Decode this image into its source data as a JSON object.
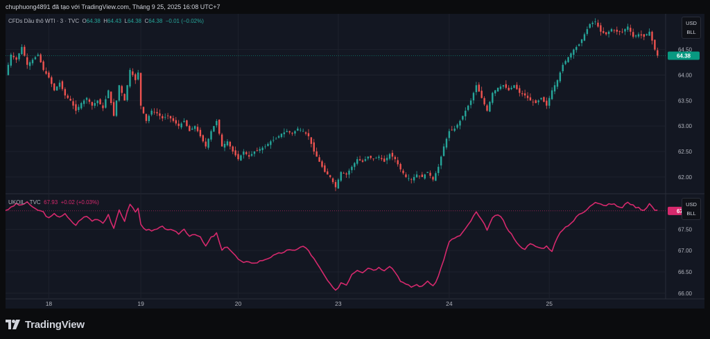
{
  "header": {
    "caption": "chuphuong4891 đã tạo với TradingView.com, Tháng 9 25, 2025 16:08 UTC+7"
  },
  "top_legend": {
    "symbol": "CFDs Dầu thô WTI · 3 · TVC",
    "o_label": "O",
    "o_value": "64.38",
    "h_label": "H",
    "h_value": "64.43",
    "l_label": "L",
    "l_value": "64.38",
    "c_label": "C",
    "c_value": "64.38",
    "change": "−0.01 (−0.02%)"
  },
  "bottom_legend": {
    "symbol": "UKOIL · TVC",
    "value": "67.93",
    "change": "+0.02 (+0.03%)"
  },
  "unit_buttons": {
    "currency": "USD",
    "unit": "BLL"
  },
  "footer": {
    "brand": "TradingView"
  },
  "colors": {
    "up": "#26a69a",
    "down": "#ef5350",
    "brent_line": "#d6296d",
    "price_tag_top": "#089981",
    "price_tag_bottom": "#d6296d",
    "grid": "#1e222d",
    "axis_text": "#b2b5be"
  },
  "chart_data": [
    {
      "type": "candlestick",
      "title": "CFDs Dầu thô WTI · 3 · TVC",
      "x_ticks": [
        "18",
        "19",
        "20",
        "23",
        "24",
        "25"
      ],
      "y_ticks": [
        62.0,
        62.5,
        63.0,
        63.5,
        64.0,
        64.5
      ],
      "ylim": [
        61.7,
        65.2
      ],
      "last_price": "64.38",
      "grid": true,
      "series": [
        {
          "name": "WTI",
          "close_path": [
            [
              0,
              64.0
            ],
            [
              2,
              64.4
            ],
            [
              4,
              64.3
            ],
            [
              6,
              64.55
            ],
            [
              8,
              64.2
            ],
            [
              10,
              64.3
            ],
            [
              12,
              64.4
            ],
            [
              14,
              64.1
            ],
            [
              16,
              63.95
            ],
            [
              18,
              63.7
            ],
            [
              20,
              63.85
            ],
            [
              22,
              63.6
            ],
            [
              24,
              63.5
            ],
            [
              26,
              63.3
            ],
            [
              28,
              63.45
            ],
            [
              30,
              63.55
            ],
            [
              32,
              63.4
            ],
            [
              34,
              63.5
            ],
            [
              36,
              63.35
            ],
            [
              38,
              63.7
            ],
            [
              40,
              63.2
            ],
            [
              42,
              63.8
            ],
            [
              44,
              63.5
            ],
            [
              46,
              64.1
            ],
            [
              48,
              63.9
            ],
            [
              49,
              64.05
            ],
            [
              50,
              63.4
            ],
            [
              52,
              63.1
            ],
            [
              54,
              63.3
            ],
            [
              56,
              63.25
            ],
            [
              58,
              63.15
            ],
            [
              60,
              63.2
            ],
            [
              62,
              63.1
            ],
            [
              64,
              63.0
            ],
            [
              66,
              63.1
            ],
            [
              68,
              62.9
            ],
            [
              70,
              63.0
            ],
            [
              72,
              62.8
            ],
            [
              74,
              62.6
            ],
            [
              76,
              62.9
            ],
            [
              78,
              63.1
            ],
            [
              80,
              62.6
            ],
            [
              82,
              62.7
            ],
            [
              84,
              62.5
            ],
            [
              86,
              62.35
            ],
            [
              88,
              62.5
            ],
            [
              90,
              62.4
            ],
            [
              92,
              62.5
            ],
            [
              94,
              62.55
            ],
            [
              96,
              62.6
            ],
            [
              98,
              62.7
            ],
            [
              100,
              62.75
            ],
            [
              102,
              62.85
            ],
            [
              104,
              62.9
            ],
            [
              106,
              62.85
            ],
            [
              108,
              62.95
            ],
            [
              110,
              62.9
            ],
            [
              112,
              62.8
            ],
            [
              114,
              62.5
            ],
            [
              116,
              62.3
            ],
            [
              118,
              62.1
            ],
            [
              120,
              62.0
            ],
            [
              122,
              61.8
            ],
            [
              124,
              62.1
            ],
            [
              126,
              62.05
            ],
            [
              128,
              62.2
            ],
            [
              130,
              62.35
            ],
            [
              132,
              62.3
            ],
            [
              134,
              62.4
            ],
            [
              136,
              62.35
            ],
            [
              138,
              62.4
            ],
            [
              140,
              62.3
            ],
            [
              142,
              62.45
            ],
            [
              144,
              62.35
            ],
            [
              146,
              62.15
            ],
            [
              148,
              62.0
            ],
            [
              150,
              61.95
            ],
            [
              152,
              62.05
            ],
            [
              154,
              62.0
            ],
            [
              156,
              62.1
            ],
            [
              158,
              61.95
            ],
            [
              160,
              62.2
            ],
            [
              162,
              62.6
            ],
            [
              164,
              62.9
            ],
            [
              166,
              62.95
            ],
            [
              168,
              63.1
            ],
            [
              170,
              63.3
            ],
            [
              172,
              63.5
            ],
            [
              174,
              63.8
            ],
            [
              176,
              63.55
            ],
            [
              178,
              63.3
            ],
            [
              180,
              63.65
            ],
            [
              182,
              63.75
            ],
            [
              184,
              63.8
            ],
            [
              186,
              63.7
            ],
            [
              188,
              63.8
            ],
            [
              190,
              63.65
            ],
            [
              192,
              63.6
            ],
            [
              194,
              63.5
            ],
            [
              196,
              63.45
            ],
            [
              198,
              63.55
            ],
            [
              200,
              63.4
            ],
            [
              202,
              63.7
            ],
            [
              204,
              63.9
            ],
            [
              206,
              64.2
            ],
            [
              208,
              64.35
            ],
            [
              210,
              64.5
            ],
            [
              212,
              64.6
            ],
            [
              214,
              64.8
            ],
            [
              216,
              65.0
            ],
            [
              218,
              65.05
            ],
            [
              220,
              64.85
            ],
            [
              222,
              64.8
            ],
            [
              224,
              64.9
            ],
            [
              226,
              64.85
            ],
            [
              228,
              64.85
            ],
            [
              230,
              64.95
            ],
            [
              232,
              64.75
            ],
            [
              234,
              64.8
            ],
            [
              236,
              64.75
            ],
            [
              238,
              64.85
            ],
            [
              240,
              64.5
            ],
            [
              241,
              64.38
            ]
          ]
        }
      ]
    },
    {
      "type": "line",
      "title": "UKOIL · TVC",
      "x_ticks": [
        "18",
        "19",
        "20",
        "23",
        "24",
        "25"
      ],
      "y_ticks": [
        66.0,
        66.5,
        67.0,
        67.5
      ],
      "ylim": [
        65.9,
        68.3
      ],
      "last_price": "67.93",
      "grid": true,
      "series": [
        {
          "name": "UKOIL",
          "path": [
            [
              0,
              67.95
            ],
            [
              2,
              68.0
            ],
            [
              4,
              68.1
            ],
            [
              6,
              68.05
            ],
            [
              8,
              68.15
            ],
            [
              10,
              68.0
            ],
            [
              12,
              67.95
            ],
            [
              14,
              67.9
            ],
            [
              16,
              67.75
            ],
            [
              18,
              67.85
            ],
            [
              20,
              67.8
            ],
            [
              22,
              67.85
            ],
            [
              24,
              67.7
            ],
            [
              26,
              67.6
            ],
            [
              28,
              67.75
            ],
            [
              30,
              67.8
            ],
            [
              32,
              67.7
            ],
            [
              34,
              67.75
            ],
            [
              36,
              67.65
            ],
            [
              38,
              67.85
            ],
            [
              40,
              67.5
            ],
            [
              42,
              67.95
            ],
            [
              44,
              67.7
            ],
            [
              46,
              68.1
            ],
            [
              48,
              67.9
            ],
            [
              49,
              68.0
            ],
            [
              50,
              67.6
            ],
            [
              52,
              67.5
            ],
            [
              54,
              67.45
            ],
            [
              56,
              67.5
            ],
            [
              58,
              67.55
            ],
            [
              60,
              67.5
            ],
            [
              62,
              67.45
            ],
            [
              64,
              67.4
            ],
            [
              66,
              67.5
            ],
            [
              68,
              67.35
            ],
            [
              70,
              67.4
            ],
            [
              72,
              67.3
            ],
            [
              74,
              67.1
            ],
            [
              76,
              67.3
            ],
            [
              78,
              67.4
            ],
            [
              80,
              67.0
            ],
            [
              82,
              67.1
            ],
            [
              84,
              66.95
            ],
            [
              86,
              66.8
            ],
            [
              88,
              66.7
            ],
            [
              90,
              66.75
            ],
            [
              92,
              66.7
            ],
            [
              94,
              66.75
            ],
            [
              96,
              66.8
            ],
            [
              98,
              66.85
            ],
            [
              100,
              66.9
            ],
            [
              102,
              66.95
            ],
            [
              104,
              67.0
            ],
            [
              106,
              67.0
            ],
            [
              108,
              67.05
            ],
            [
              110,
              67.1
            ],
            [
              112,
              67.0
            ],
            [
              114,
              66.8
            ],
            [
              116,
              66.6
            ],
            [
              118,
              66.4
            ],
            [
              120,
              66.2
            ],
            [
              122,
              66.05
            ],
            [
              124,
              66.25
            ],
            [
              126,
              66.2
            ],
            [
              128,
              66.45
            ],
            [
              130,
              66.55
            ],
            [
              132,
              66.5
            ],
            [
              134,
              66.6
            ],
            [
              136,
              66.55
            ],
            [
              138,
              66.6
            ],
            [
              140,
              66.55
            ],
            [
              142,
              66.65
            ],
            [
              144,
              66.5
            ],
            [
              146,
              66.3
            ],
            [
              148,
              66.2
            ],
            [
              150,
              66.15
            ],
            [
              152,
              66.2
            ],
            [
              154,
              66.15
            ],
            [
              156,
              66.3
            ],
            [
              158,
              66.15
            ],
            [
              160,
              66.4
            ],
            [
              162,
              66.8
            ],
            [
              164,
              67.2
            ],
            [
              166,
              67.3
            ],
            [
              168,
              67.35
            ],
            [
              170,
              67.5
            ],
            [
              172,
              67.7
            ],
            [
              174,
              67.9
            ],
            [
              176,
              67.7
            ],
            [
              178,
              67.5
            ],
            [
              180,
              67.75
            ],
            [
              182,
              67.85
            ],
            [
              184,
              67.7
            ],
            [
              186,
              67.45
            ],
            [
              188,
              67.3
            ],
            [
              190,
              67.1
            ],
            [
              192,
              67.05
            ],
            [
              194,
              67.15
            ],
            [
              196,
              67.1
            ],
            [
              198,
              67.05
            ],
            [
              200,
              67.1
            ],
            [
              202,
              67.0
            ],
            [
              204,
              67.3
            ],
            [
              206,
              67.5
            ],
            [
              208,
              67.6
            ],
            [
              210,
              67.7
            ],
            [
              212,
              67.85
            ],
            [
              214,
              67.9
            ],
            [
              216,
              68.05
            ],
            [
              218,
              68.15
            ],
            [
              220,
              68.1
            ],
            [
              222,
              68.05
            ],
            [
              224,
              68.1
            ],
            [
              226,
              68.05
            ],
            [
              228,
              68.0
            ],
            [
              230,
              68.15
            ],
            [
              232,
              68.05
            ],
            [
              234,
              68.0
            ],
            [
              236,
              67.95
            ],
            [
              238,
              68.1
            ],
            [
              240,
              67.95
            ],
            [
              241,
              67.93
            ]
          ]
        }
      ]
    }
  ]
}
